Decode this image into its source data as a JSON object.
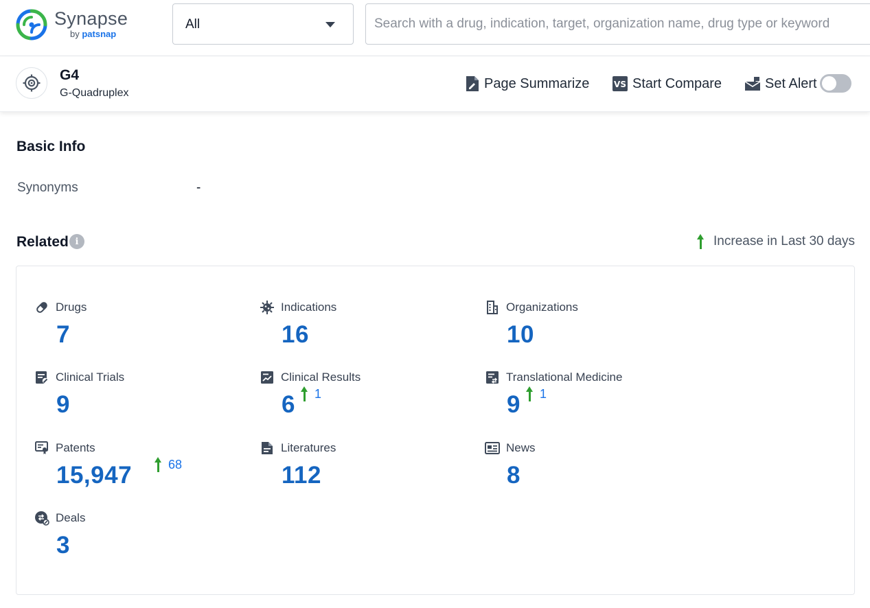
{
  "brand": {
    "title": "Synapse",
    "by": "by",
    "company": "patsnap",
    "colors": {
      "green": "#3bb54a",
      "blue": "#1a73e8"
    }
  },
  "search": {
    "scope_selected": "All",
    "placeholder": "Search with a drug, indication, target, organization name, drug type or keyword",
    "value": ""
  },
  "entity": {
    "icon": "target-icon",
    "name": "G4",
    "full_name": "G-Quadruplex"
  },
  "actions": {
    "summarize": "Page Summarize",
    "compare": "Start Compare",
    "alert": "Set Alert",
    "alert_enabled": false
  },
  "basic_info": {
    "title": "Basic Info",
    "synonyms_label": "Synonyms",
    "synonyms_value": "-"
  },
  "related": {
    "title": "Related",
    "info_icon": "i",
    "legend": "Increase in Last 30 days",
    "increase_color": "#2f9e2f",
    "value_color": "#1565c0",
    "items": [
      {
        "key": "drugs",
        "label": "Drugs",
        "value": "7",
        "increase": "",
        "icon": "pill-icon"
      },
      {
        "key": "indications",
        "label": "Indications",
        "value": "16",
        "increase": "",
        "icon": "virus-icon"
      },
      {
        "key": "organizations",
        "label": "Organizations",
        "value": "10",
        "increase": "",
        "icon": "building-icon"
      },
      {
        "key": "clinical-trials",
        "label": "Clinical Trials",
        "value": "9",
        "increase": "",
        "icon": "clipboard-icon"
      },
      {
        "key": "clinical-results",
        "label": "Clinical Results",
        "value": "6",
        "increase": "1",
        "icon": "chart-report-icon"
      },
      {
        "key": "translational-medicine",
        "label": "Translational Medicine",
        "value": "9",
        "increase": "1",
        "icon": "transfer-doc-icon"
      },
      {
        "key": "patents",
        "label": "Patents",
        "value": "15,947",
        "increase": "68",
        "icon": "certificate-icon"
      },
      {
        "key": "literatures",
        "label": "Literatures",
        "value": "112",
        "increase": "",
        "icon": "document-icon"
      },
      {
        "key": "news",
        "label": "News",
        "value": "8",
        "increase": "",
        "icon": "newspaper-icon"
      },
      {
        "key": "deals",
        "label": "Deals",
        "value": "3",
        "increase": "",
        "icon": "deal-icon"
      }
    ]
  }
}
